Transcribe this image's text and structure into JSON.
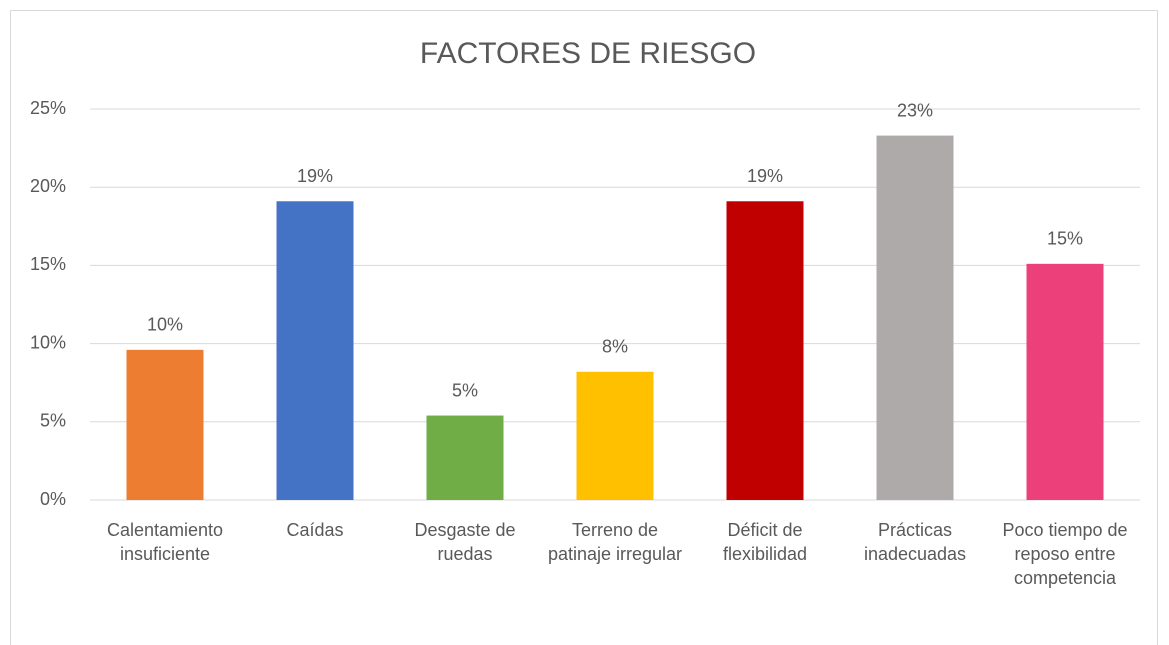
{
  "chart_data": {
    "type": "bar",
    "title": "FACTORES DE RIESGO",
    "categories": [
      "Calentamiento insuficiente",
      "Caídas",
      "Desgaste de ruedas",
      "Terreno de patinaje irregular",
      "Déficit de flexibilidad",
      "Prácticas inadecuadas",
      "Poco tiempo de reposo entre competencia"
    ],
    "values": [
      9.6,
      19.1,
      5.4,
      8.2,
      19.1,
      23.3,
      15.1
    ],
    "value_labels": [
      "10%",
      "19%",
      "5%",
      "8%",
      "19%",
      "23%",
      "15%"
    ],
    "colors": [
      "#ed7d31",
      "#4472c4",
      "#70ad47",
      "#ffc000",
      "#c00000",
      "#aeaaaa",
      "#ec407a"
    ],
    "ylim": [
      0,
      25
    ],
    "yticks": [
      {
        "value": 0,
        "label": "0%"
      },
      {
        "value": 5,
        "label": "5%"
      },
      {
        "value": 10,
        "label": "10%"
      },
      {
        "value": 15,
        "label": "15%"
      },
      {
        "value": 20,
        "label": "20%"
      },
      {
        "value": 25,
        "label": "25%"
      }
    ],
    "grid": true
  }
}
